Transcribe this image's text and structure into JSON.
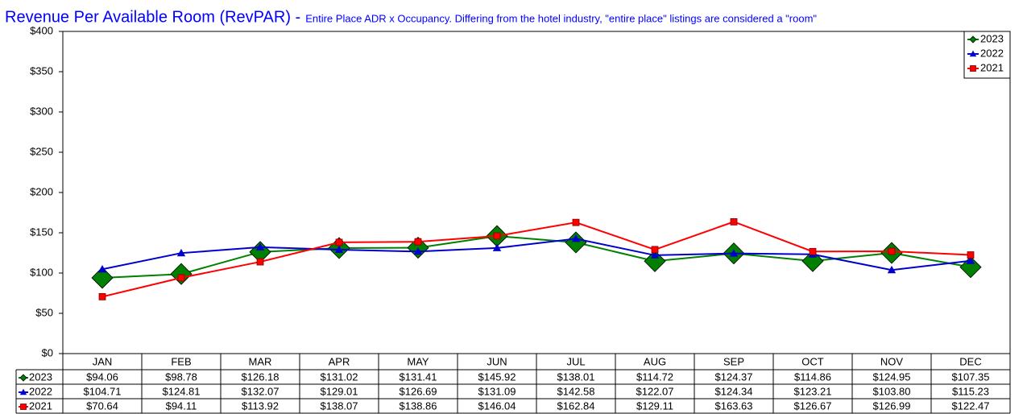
{
  "chart_data": {
    "type": "line",
    "title": "Revenue Per Available Room (RevPAR) -",
    "subtitle": "Entire Place ADR x Occupancy. Differing from the hotel industry, \"entire place\" listings are considered a \"room\"",
    "categories": [
      "JAN",
      "FEB",
      "MAR",
      "APR",
      "MAY",
      "JUN",
      "JUL",
      "AUG",
      "SEP",
      "OCT",
      "NOV",
      "DEC"
    ],
    "ylim": [
      0,
      400
    ],
    "yticks": [
      {
        "value": 0,
        "label": "$0"
      },
      {
        "value": 50,
        "label": "$50"
      },
      {
        "value": 100,
        "label": "$100"
      },
      {
        "value": 150,
        "label": "$150"
      },
      {
        "value": 200,
        "label": "$200"
      },
      {
        "value": 250,
        "label": "$250"
      },
      {
        "value": 300,
        "label": "$300"
      },
      {
        "value": 350,
        "label": "$350"
      },
      {
        "value": 400,
        "label": "$400"
      }
    ],
    "legend": "top-right",
    "series": [
      {
        "name": "2023",
        "color": "#008000",
        "marker": "diamond",
        "values": [
          94.06,
          98.78,
          126.18,
          131.02,
          131.41,
          145.92,
          138.01,
          114.72,
          124.37,
          114.86,
          124.95,
          107.35
        ],
        "value_labels": [
          "$94.06",
          "$98.78",
          "$126.18",
          "$131.02",
          "$131.41",
          "$145.92",
          "$138.01",
          "$114.72",
          "$124.37",
          "$114.86",
          "$124.95",
          "$107.35"
        ]
      },
      {
        "name": "2022",
        "color": "#0000cc",
        "marker": "triangle",
        "values": [
          104.71,
          124.81,
          132.07,
          129.01,
          126.69,
          131.09,
          142.58,
          122.07,
          124.34,
          123.21,
          103.8,
          115.23
        ],
        "value_labels": [
          "$104.71",
          "$124.81",
          "$132.07",
          "$129.01",
          "$126.69",
          "$131.09",
          "$142.58",
          "$122.07",
          "$124.34",
          "$123.21",
          "$103.80",
          "$115.23"
        ]
      },
      {
        "name": "2021",
        "color": "#ff0000",
        "marker": "square",
        "values": [
          70.64,
          94.11,
          113.92,
          138.07,
          138.86,
          146.04,
          162.84,
          129.11,
          163.63,
          126.67,
          126.99,
          122.47
        ],
        "value_labels": [
          "$70.64",
          "$94.11",
          "$113.92",
          "$138.07",
          "$138.86",
          "$146.04",
          "$162.84",
          "$129.11",
          "$163.63",
          "$126.67",
          "$126.99",
          "$122.47"
        ]
      }
    ]
  }
}
